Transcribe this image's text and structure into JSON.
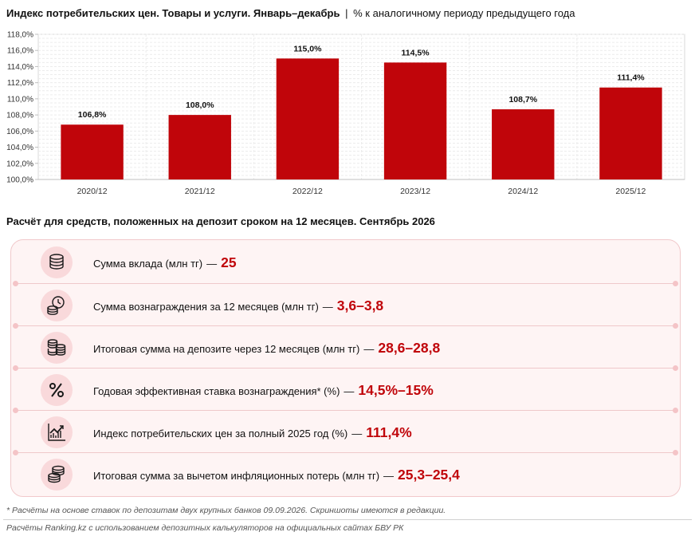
{
  "header": {
    "title_bold": "Индекс потребительских цен. Товары и услуги. Январь–декабрь",
    "separator": "|",
    "title_rest": "% к аналогичному периоду предыдущего года"
  },
  "chart_data": {
    "type": "bar",
    "categories": [
      "2020/12",
      "2021/12",
      "2022/12",
      "2023/12",
      "2024/12",
      "2025/12"
    ],
    "values": [
      106.8,
      108.0,
      115.0,
      114.5,
      108.7,
      111.4
    ],
    "value_labels": [
      "106,8%",
      "108,0%",
      "115,0%",
      "114,5%",
      "108,7%",
      "111,4%"
    ],
    "yticks": [
      100,
      102,
      104,
      106,
      108,
      110,
      112,
      114,
      116,
      118
    ],
    "ytick_labels": [
      "100,0%",
      "102,0%",
      "104,0%",
      "106,0%",
      "108,0%",
      "110,0%",
      "112,0%",
      "114,0%",
      "116,0%",
      "118,0%"
    ],
    "ylim": [
      100,
      118
    ],
    "grid": true,
    "bar_color": "#c0050a",
    "xlabel": "",
    "ylabel": ""
  },
  "calculation": {
    "heading": "Расчёт для средств, положенных на депозит сроком на 12 месяцев. Сентябрь 2026",
    "rows": [
      {
        "icon": "coins-stack-icon",
        "label": "Сумма вклада (млн тг)",
        "dash": "—",
        "value": "25"
      },
      {
        "icon": "clock-coins-icon",
        "label": "Сумма вознаграждения за 12 месяцев (млн тг)",
        "dash": "—",
        "value": "3,6–3,8"
      },
      {
        "icon": "money-stacks-icon",
        "label": "Итоговая сумма на депозите через 12 месяцев (млн тг)",
        "dash": "—",
        "value": "28,6–28,8"
      },
      {
        "icon": "percent-icon",
        "label": "Годовая эффективная ставка вознаграждения* (%)",
        "dash": "—",
        "value": "14,5%–15%"
      },
      {
        "icon": "growth-chart-icon",
        "label": "Индекс потребительских цен за полный 2025 год (%)",
        "dash": "—",
        "value": "111,4%"
      },
      {
        "icon": "coins-pile-icon",
        "label": "Итоговая сумма за вычетом инфляционных потерь (млн тг)",
        "dash": "—",
        "value": "25,3–25,4"
      }
    ]
  },
  "footnote": "* Расчёты на основе ставок по депозитам двух крупных банков 09.09.2026. Скриншоты имеются в редакции.",
  "source": "Расчёты Ranking.kz с использованием депозитных калькуляторов на официальных сайтах БВУ РК",
  "colors": {
    "accent": "#c0050a",
    "panel_bg": "#fef4f4",
    "icon_bg": "#f9d9db"
  }
}
